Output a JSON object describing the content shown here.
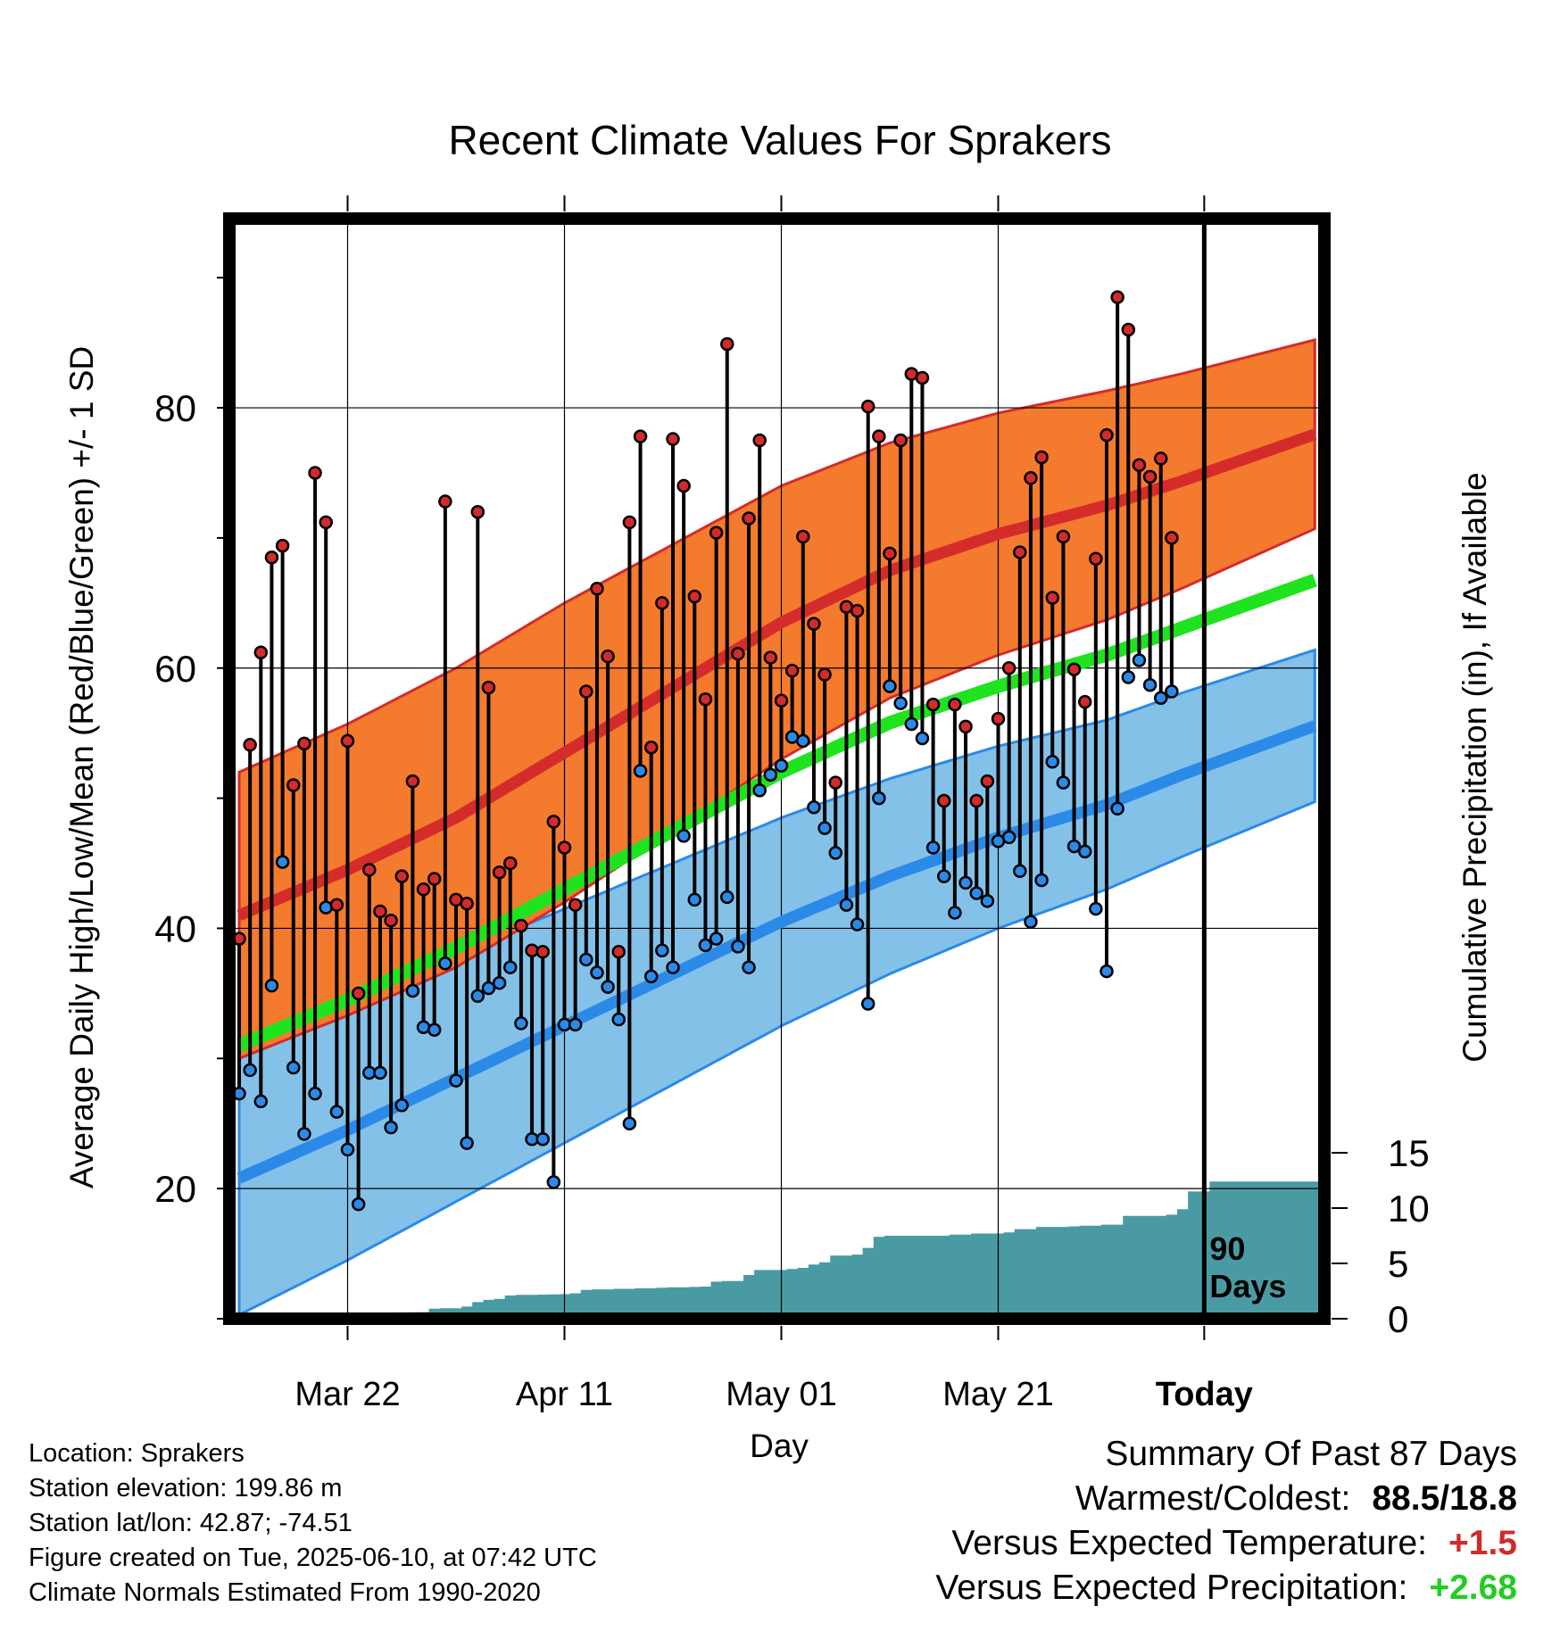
{
  "chart_data": {
    "type": "line",
    "title": "Recent Climate Values For Sprakers",
    "xlabel": "Day",
    "ylabel": "Average Daily High/Low/Mean (Red/Blue/Green) +/- 1 SD",
    "y2label": "Cumulative Precipitation (in), If Available",
    "ylim": [
      10,
      93
    ],
    "y2lim": [
      0,
      60
    ],
    "yticks": [
      "20",
      "40",
      "60",
      "80"
    ],
    "y2ticks": [
      "0",
      "5",
      "10",
      "15"
    ],
    "xticks": [
      "Mar 22",
      "Apr 11",
      "May 01",
      "May 21",
      "Today"
    ],
    "x_start": "Mar 12",
    "days": 100,
    "marker_label": "90\nDays",
    "grid": true,
    "colors": {
      "high_band": "#f47a2e",
      "high_line": "#d42b2b",
      "low_band": "#84c1e8",
      "low_line": "#2b8ae8",
      "mean_line": "#1fe31f",
      "precip": "#4a9aa3"
    },
    "normals": {
      "days": [
        0,
        10,
        20,
        30,
        40,
        50,
        60,
        70,
        80,
        90,
        100
      ],
      "high_mean": [
        41,
        44.5,
        48.5,
        53.5,
        58.5,
        63.5,
        67.5,
        70.3,
        72.5,
        75.2,
        78.2
      ],
      "high_sd": [
        11,
        11.2,
        11.5,
        11.5,
        11,
        10.5,
        9.8,
        9.3,
        8.8,
        8,
        7.2
      ],
      "low_mean": [
        20.8,
        24.5,
        28.5,
        32.5,
        36.5,
        40.5,
        44,
        47,
        49.5,
        52.8,
        55.8
      ],
      "low_sd": [
        10.5,
        10,
        9.5,
        9,
        8.5,
        8,
        7.5,
        7,
        6.5,
        6.2,
        5.8
      ],
      "avg_mean": [
        31,
        34.5,
        38.5,
        43,
        47.5,
        52,
        55.8,
        58.6,
        61,
        64,
        67
      ]
    },
    "series": [
      {
        "name": "High",
        "values": [
          39.2,
          54.1,
          61.2,
          68.5,
          69.4,
          51,
          54.2,
          75,
          71.2,
          41.8,
          54.4,
          35,
          44.5,
          41.3,
          40.6,
          44,
          51.3,
          43,
          43.8,
          72.8,
          42.2,
          41.9,
          72,
          58.5,
          44.3,
          45,
          40.2,
          38.3,
          38.2,
          48.2,
          46.2,
          41.8,
          58.2,
          66.1,
          60.9,
          38.2,
          71.2,
          77.8,
          53.9,
          65,
          77.6,
          74,
          65.5,
          57.6,
          70.4,
          84.9,
          61.1,
          71.5,
          77.5,
          60.8,
          57.5,
          59.8,
          70.1,
          63.4,
          59.5,
          51.2,
          64.7,
          64.4,
          80.1,
          77.8,
          68.8,
          77.5,
          82.6,
          82.3,
          57.2,
          49.8,
          57.2,
          55.5,
          49.8,
          51.3,
          56.1,
          60,
          68.9,
          74.6,
          76.2,
          65.4,
          70.1,
          59.9,
          57.4,
          68.4,
          77.9,
          88.5,
          86,
          75.6,
          74.7,
          76.1,
          70
        ]
      },
      {
        "name": "Low",
        "values": [
          27.3,
          29.1,
          26.7,
          35.6,
          45.1,
          29.3,
          24.2,
          27.3,
          41.6,
          25.9,
          23,
          18.8,
          28.9,
          28.9,
          24.7,
          26.4,
          35.2,
          32.4,
          32.2,
          37.3,
          28.3,
          23.5,
          34.8,
          35.4,
          35.8,
          37,
          32.7,
          23.8,
          23.8,
          20.5,
          32.6,
          32.6,
          37.6,
          36.6,
          35.5,
          33,
          25,
          52.1,
          36.3,
          38.3,
          37,
          47.1,
          42.2,
          38.7,
          39.2,
          42.4,
          38.6,
          37,
          50.6,
          51.8,
          52.5,
          54.7,
          54.4,
          49.3,
          47.7,
          45.8,
          41.8,
          40.3,
          34.2,
          50,
          58.6,
          57.3,
          55.7,
          54.6,
          46.2,
          44,
          41.2,
          43.5,
          42.7,
          42.1,
          46.7,
          47,
          44.4,
          40.5,
          43.7,
          52.8,
          51.2,
          46.3,
          45.9,
          41.5,
          36.7,
          49.2,
          59.3,
          60.6,
          58.7,
          57.7,
          58.2
        ]
      },
      {
        "name": "Precipitation",
        "values": [
          0,
          0,
          0,
          0,
          0,
          0.02,
          0.05,
          0.05,
          0.05,
          0.45,
          0.45,
          0.48,
          0.5,
          0.55,
          0.55,
          0.57,
          0.58,
          0.6,
          0.9,
          0.95,
          0.95,
          1.1,
          1.5,
          1.7,
          1.8,
          2.1,
          2.15,
          2.15,
          2.18,
          2.2,
          2.22,
          2.3,
          2.6,
          2.65,
          2.65,
          2.7,
          2.7,
          2.75,
          2.75,
          2.8,
          2.85,
          2.85,
          2.87,
          2.9,
          3.35,
          3.4,
          3.4,
          3.95,
          4.4,
          4.4,
          4.4,
          4.5,
          4.6,
          4.9,
          5.1,
          5.7,
          5.7,
          5.8,
          6.4,
          7.4,
          7.5,
          7.5,
          7.5,
          7.5,
          7.5,
          7.5,
          7.6,
          7.6,
          7.7,
          7.7,
          7.7,
          7.8,
          8.1,
          8.1,
          8.3,
          8.3,
          8.3,
          8.35,
          8.4,
          8.4,
          8.5,
          8.5,
          9.3,
          9.3,
          9.3,
          9.3,
          9.4,
          9.9,
          11.5,
          11.5,
          12.4,
          12.4,
          12.4,
          12.4,
          12.4,
          12.4,
          12.4,
          12.4,
          12.4,
          12.4,
          12.4,
          12.4
        ]
      }
    ]
  },
  "footer": {
    "location": "Location: Sprakers",
    "elevation": "Station elevation: 199.86 m",
    "latlon": "Station lat/lon: 42.87; -74.51",
    "created": "Figure created on Tue, 2025-06-10, at 07:42 UTC",
    "normals": "Climate Normals Estimated From 1990-2020"
  },
  "summary": {
    "title": "Summary Of Past 87 Days",
    "warmest_label": "Warmest/Coldest:",
    "warmest_value": "88.5/18.8",
    "temp_label": "Versus Expected Temperature:",
    "temp_value": "+1.5",
    "precip_label": "Versus Expected Precipitation:",
    "precip_value": "+2.68"
  }
}
